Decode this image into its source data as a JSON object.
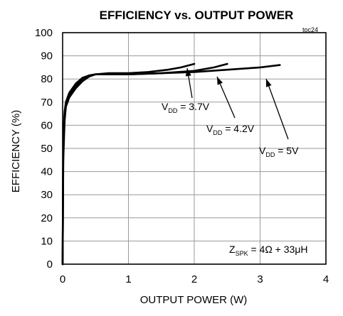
{
  "chart_data": {
    "type": "line",
    "title": "EFFICIENCY vs. OUTPUT POWER",
    "tag": "toc24",
    "xlabel": "OUTPUT POWER (W)",
    "ylabel": "EFFICIENCY (%)",
    "xlim": [
      0,
      4
    ],
    "ylim": [
      0,
      100
    ],
    "xticks": [
      0,
      1,
      2,
      3,
      4
    ],
    "yticks": [
      0,
      10,
      20,
      30,
      40,
      50,
      60,
      70,
      80,
      90,
      100
    ],
    "grid": true,
    "series": [
      {
        "name": "VDD = 3.7V",
        "label": {
          "main": "V",
          "sub": "DD",
          "rest": " = 3.7V"
        },
        "x": [
          0,
          0.01,
          0.03,
          0.05,
          0.1,
          0.2,
          0.3,
          0.4,
          0.5,
          0.7,
          1.0,
          1.3,
          1.6,
          1.8,
          2.0
        ],
        "y": [
          0,
          45,
          62,
          68,
          72,
          76,
          79,
          81,
          82,
          82.5,
          82.5,
          83,
          84,
          85,
          86.5
        ]
      },
      {
        "name": "VDD = 4.2V",
        "label": {
          "main": "V",
          "sub": "DD",
          "rest": " = 4.2V"
        },
        "x": [
          0,
          0.01,
          0.03,
          0.05,
          0.1,
          0.2,
          0.3,
          0.4,
          0.5,
          0.7,
          1.0,
          1.5,
          2.0,
          2.3,
          2.5
        ],
        "y": [
          0,
          50,
          65,
          69,
          73,
          77,
          80,
          81.5,
          82,
          82,
          82,
          82.5,
          83.5,
          85,
          86.5
        ]
      },
      {
        "name": "VDD = 5V",
        "label": {
          "main": "V",
          "sub": "DD",
          "rest": " = 5V"
        },
        "x": [
          0,
          0.01,
          0.03,
          0.05,
          0.1,
          0.2,
          0.3,
          0.4,
          0.5,
          0.7,
          1.0,
          1.5,
          2.0,
          2.5,
          3.0,
          3.3
        ],
        "y": [
          0,
          55,
          66,
          70,
          74,
          78,
          80.5,
          81.5,
          82,
          82,
          82,
          82.5,
          83,
          84,
          85,
          86
        ]
      }
    ],
    "annotation": {
      "main": "Z",
      "sub": "SPK",
      "rest": " = 4Ω + 33μH"
    }
  }
}
